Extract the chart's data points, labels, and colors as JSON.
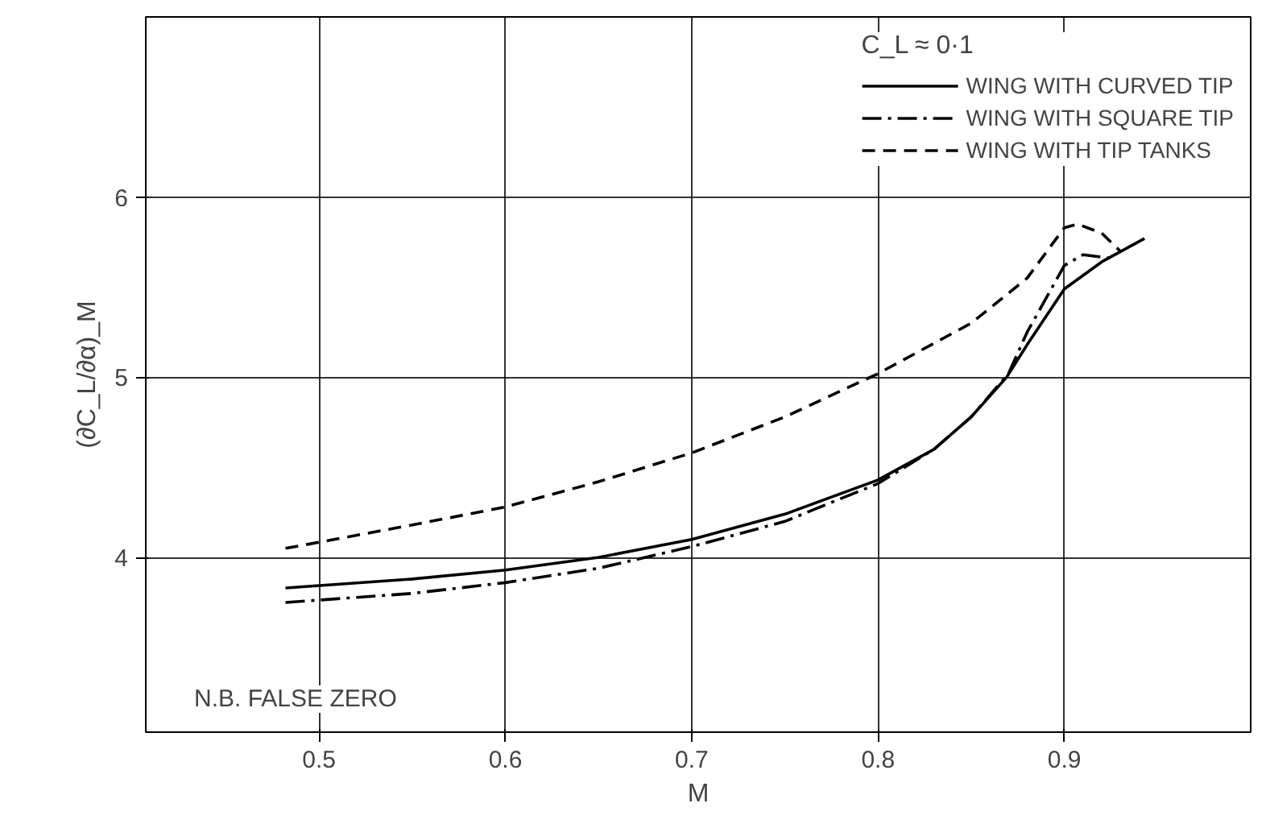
{
  "chart_data": {
    "type": "line",
    "xlabel": "M",
    "ylabel": "(∂C_L/∂α)_M",
    "legend_title": "C_L ≈ 0·1",
    "annotations": [
      "N.B. FALSE ZERO"
    ],
    "series": [
      {
        "name": "WING WITH CURVED TIP",
        "color": "#000000",
        "line_style": "solid",
        "x": [
          0.482,
          0.55,
          0.6,
          0.65,
          0.7,
          0.75,
          0.8,
          0.83,
          0.85,
          0.869,
          0.88,
          0.9,
          0.92,
          0.943
        ],
        "values": [
          3.83,
          3.88,
          3.93,
          4.0,
          4.1,
          4.24,
          4.43,
          4.6,
          4.78,
          5.0,
          5.18,
          5.49,
          5.64,
          5.77
        ]
      },
      {
        "name": "WING WITH SQUARE TIP",
        "color": "#000000",
        "line_style": "dashdot",
        "x": [
          0.482,
          0.55,
          0.6,
          0.65,
          0.7,
          0.75,
          0.8,
          0.83,
          0.85,
          0.87,
          0.88,
          0.9,
          0.91,
          0.925
        ],
        "values": [
          3.75,
          3.8,
          3.86,
          3.94,
          4.06,
          4.2,
          4.41,
          4.6,
          4.78,
          5.02,
          5.25,
          5.62,
          5.68,
          5.66
        ]
      },
      {
        "name": "WING WITH TIP TANKS",
        "color": "#000000",
        "line_style": "dashed",
        "x": [
          0.482,
          0.55,
          0.6,
          0.65,
          0.7,
          0.75,
          0.8,
          0.85,
          0.88,
          0.9,
          0.907,
          0.92,
          0.93
        ],
        "values": [
          4.05,
          4.18,
          4.28,
          4.42,
          4.58,
          4.78,
          5.02,
          5.3,
          5.55,
          5.83,
          5.85,
          5.8,
          5.7
        ]
      }
    ],
    "xlim": [
      0.407,
      1.0
    ],
    "ylim": [
      3.03,
      7.0
    ],
    "xticks": [
      0.5,
      0.6,
      0.7,
      0.8,
      0.9
    ],
    "yticks": [
      4,
      5,
      6
    ],
    "grid": true,
    "legend": "top right",
    "marker": "none"
  }
}
